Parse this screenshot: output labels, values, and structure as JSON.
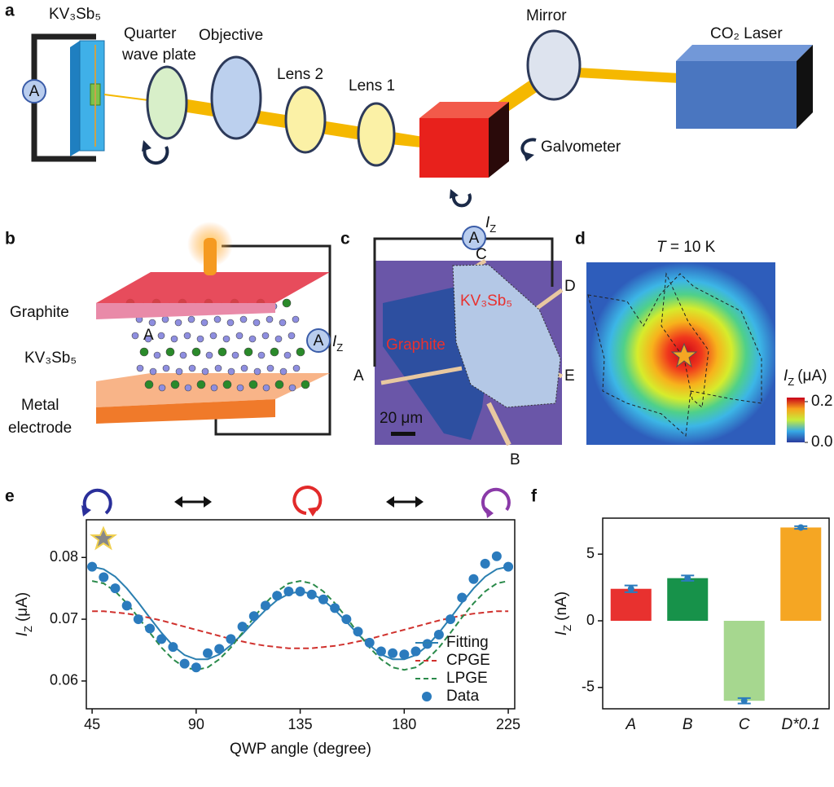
{
  "panel_labels": [
    "a",
    "b",
    "c",
    "d",
    "e",
    "f"
  ],
  "panel_a": {
    "sample": "KV₃Sb₅",
    "ammeter": "A",
    "quarter_wave_plate": [
      "Quarter",
      "wave plate"
    ],
    "objective": "Objective",
    "lens_2": "Lens 2",
    "lens_1": "Lens 1",
    "mirror": "Mirror",
    "laser": "CO₂ Laser",
    "galvometer": "Galvometer"
  },
  "panel_b": {
    "top_layer": "Graphite",
    "crystal": "KV₃Sb₅",
    "bottom_layer": [
      "Metal",
      "electrode"
    ],
    "crystal_axis": "A",
    "ammeter": "A",
    "current": {
      "symbol": "I",
      "subscript": "Z"
    }
  },
  "panel_c": {
    "ammeter": "A",
    "current": {
      "symbol": "I",
      "subscript": "Z"
    },
    "contacts": [
      "A",
      "B",
      "C",
      "D",
      "E"
    ],
    "sample": "KV₃Sb₅",
    "graphite": "Graphite",
    "scale_bar": "20 μm"
  },
  "panel_d": {
    "title": {
      "symbol": "T",
      "rest": "= 10 K"
    },
    "colorbar_label": {
      "symbol": "I",
      "subscript": "Z",
      "unit": "(μA)"
    },
    "colorbar_lim": [
      0,
      0.22
    ],
    "colorbar_ticks": [
      0.2,
      {
        "value": 0,
        "label": "0.0"
      }
    ]
  },
  "chart_data": [
    {
      "type": "line",
      "x_label": "QWP angle (degree)",
      "y_label": {
        "symbol": "I",
        "subscript": "Z",
        "unit": "(μA)"
      },
      "x": [
        45,
        50,
        55,
        60,
        65,
        70,
        75,
        80,
        85,
        90,
        95,
        100,
        105,
        110,
        115,
        120,
        125,
        130,
        135,
        140,
        145,
        150,
        155,
        160,
        165,
        170,
        175,
        180,
        185,
        190,
        195,
        200,
        205,
        210,
        215,
        220,
        225
      ],
      "series": [
        {
          "name": "Fitting",
          "color": "#2b7fb0",
          "style": "solid",
          "values": [
            0.0785,
            0.0781,
            0.0769,
            0.075,
            0.0727,
            0.0702,
            0.0678,
            0.0657,
            0.0642,
            0.0635,
            0.0635,
            0.0643,
            0.0658,
            0.0676,
            0.0696,
            0.0715,
            0.0731,
            0.0741,
            0.0745,
            0.0741,
            0.0731,
            0.0715,
            0.0696,
            0.0676,
            0.0658,
            0.0643,
            0.0635,
            0.0635,
            0.0642,
            0.0657,
            0.0678,
            0.0702,
            0.0727,
            0.075,
            0.0769,
            0.0781,
            0.0785
          ]
        },
        {
          "name": "CPGE",
          "color": "#d0312d",
          "style": "dashed",
          "values": [
            0.0713,
            0.0713,
            0.0711,
            0.0709,
            0.0706,
            0.0702,
            0.0698,
            0.0693,
            0.0688,
            0.0683,
            0.0678,
            0.0673,
            0.0668,
            0.0664,
            0.066,
            0.0657,
            0.0655,
            0.0653,
            0.0653,
            0.0653,
            0.0655,
            0.0657,
            0.066,
            0.0664,
            0.0668,
            0.0673,
            0.0678,
            0.0683,
            0.0688,
            0.0693,
            0.0698,
            0.0702,
            0.0706,
            0.0709,
            0.0711,
            0.0713,
            0.0713
          ]
        },
        {
          "name": "LPGE",
          "color": "#2a8a4a",
          "style": "dashed",
          "values": [
            0.0762,
            0.0758,
            0.0745,
            0.0726,
            0.0703,
            0.0678,
            0.0654,
            0.0635,
            0.0622,
            0.0618,
            0.0622,
            0.0635,
            0.0654,
            0.0678,
            0.0703,
            0.0726,
            0.0745,
            0.0758,
            0.0762,
            0.0758,
            0.0745,
            0.0726,
            0.0703,
            0.0678,
            0.0654,
            0.0635,
            0.0622,
            0.0618,
            0.0622,
            0.0635,
            0.0654,
            0.0678,
            0.0703,
            0.0726,
            0.0745,
            0.0758,
            0.0762
          ]
        },
        {
          "name": "Data",
          "color": "#2b7bbd",
          "style": "markers",
          "values": [
            0.0785,
            0.0768,
            0.075,
            0.0722,
            0.07,
            0.0685,
            0.0668,
            0.0655,
            0.0628,
            0.0622,
            0.0645,
            0.0652,
            0.0668,
            0.0688,
            0.0705,
            0.0722,
            0.0738,
            0.0745,
            0.0745,
            0.074,
            0.0732,
            0.0718,
            0.07,
            0.068,
            0.0662,
            0.0648,
            0.0645,
            0.0643,
            0.0648,
            0.066,
            0.0675,
            0.07,
            0.0735,
            0.0765,
            0.079,
            0.0802,
            0.0785
          ]
        }
      ],
      "xlim": [
        42.5,
        227.8
      ],
      "ylim": [
        0.0555,
        0.0861
      ],
      "xticks": [
        45,
        90,
        135,
        180,
        225
      ],
      "yticks": [
        0.06,
        0.07,
        0.08
      ],
      "legend": "lower right"
    },
    {
      "type": "bar",
      "y_label": {
        "symbol": "I",
        "subscript": "Z",
        "unit": "(nA)"
      },
      "categories": [
        "A",
        "B",
        "C",
        "D*0.1"
      ],
      "values": [
        2.4,
        3.2,
        -6.0,
        7.0
      ],
      "errors": [
        0.25,
        0.2,
        0.2,
        0.1
      ],
      "colors": [
        "#e8312f",
        "#17924a",
        "#a6d78f",
        "#f5a623"
      ],
      "error_color": "#2b7bbd",
      "ylim": [
        -6.6,
        7.7
      ],
      "yticks": [
        -5,
        0,
        5
      ]
    }
  ]
}
